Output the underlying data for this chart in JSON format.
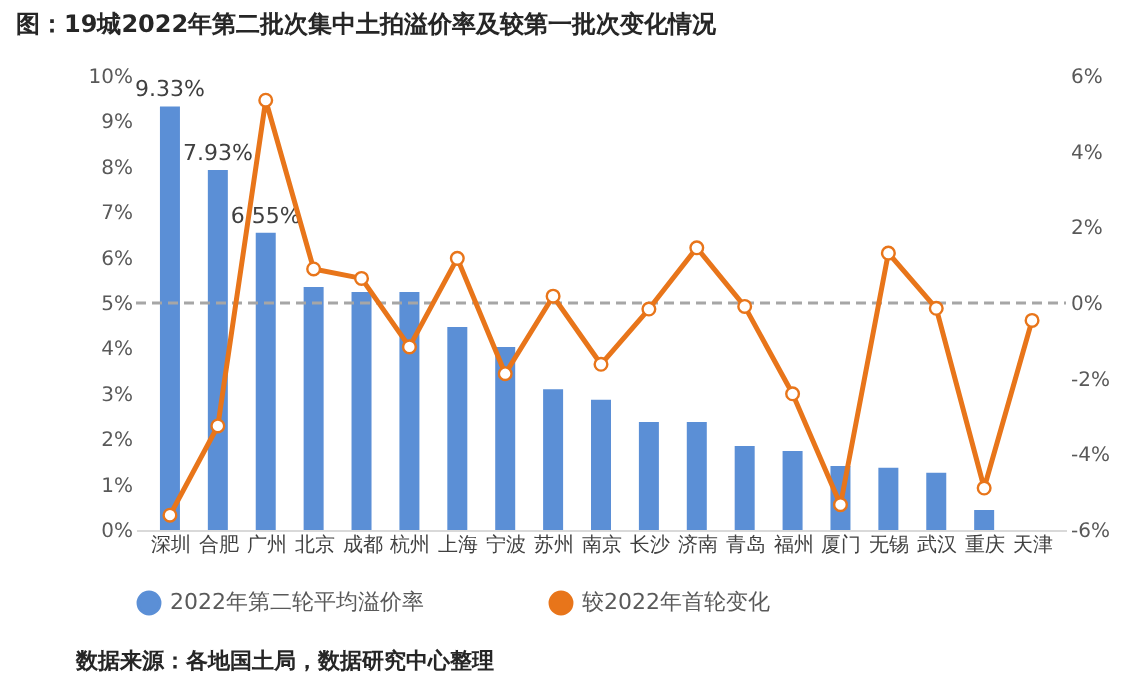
{
  "chart_data": {
    "type": "bar",
    "title": "图：19城2022年第二批次集中土拍溢价率及较第一批次变化情况",
    "categories": [
      "深圳",
      "合肥",
      "广州",
      "北京",
      "成都",
      "杭州",
      "上海",
      "宁波",
      "苏州",
      "南京",
      "长沙",
      "济南",
      "青岛",
      "福州",
      "厦门",
      "无锡",
      "武汉",
      "重庆",
      "天津"
    ],
    "series": [
      {
        "name": "2022年第二轮平均溢价率",
        "color": "#5b8fd6",
        "values": [
          9.33,
          7.93,
          6.55,
          5.35,
          5.24,
          5.24,
          4.47,
          4.03,
          3.1,
          2.87,
          2.38,
          2.38,
          1.85,
          1.74,
          1.41,
          1.37,
          1.26,
          0.44,
          null
        ],
        "value_labels": [
          "9.33%",
          "7.93%",
          "6.55%",
          null,
          null,
          null,
          null,
          null,
          null,
          null,
          null,
          null,
          null,
          null,
          null,
          null,
          null,
          null,
          null
        ]
      },
      {
        "name": "较2022年首轮变化",
        "type": "line",
        "axis": "y2",
        "color": "#e8751a",
        "marker": "circle",
        "values": [
          -5.61,
          -3.25,
          5.36,
          0.9,
          0.65,
          -1.16,
          1.18,
          -1.87,
          0.18,
          -1.62,
          -0.16,
          1.46,
          -0.09,
          -2.4,
          -5.33,
          1.32,
          -0.14,
          -4.89,
          -0.46
        ]
      }
    ],
    "ylim": [
      0,
      10
    ],
    "yticks": [
      {
        "value": 0,
        "label": "0%"
      },
      {
        "value": 1,
        "label": "1%"
      },
      {
        "value": 2,
        "label": "2%"
      },
      {
        "value": 3,
        "label": "3%"
      },
      {
        "value": 4,
        "label": "4%"
      },
      {
        "value": 5,
        "label": "5%"
      },
      {
        "value": 6,
        "label": "6%"
      },
      {
        "value": 7,
        "label": "7%"
      },
      {
        "value": 8,
        "label": "8%"
      },
      {
        "value": 9,
        "label": "9%"
      },
      {
        "value": 10,
        "label": "10%"
      }
    ],
    "y2lim": [
      -6,
      6
    ],
    "y2ticks": [
      {
        "value": -6,
        "label": "-6%"
      },
      {
        "value": -4,
        "label": "-4%"
      },
      {
        "value": -2,
        "label": "-2%"
      },
      {
        "value": 0,
        "label": "0%"
      },
      {
        "value": 2,
        "label": "2%"
      },
      {
        "value": 4,
        "label": "4%"
      },
      {
        "value": 6,
        "label": "6%"
      }
    ],
    "ref_lines": [
      {
        "axis": "y2",
        "value": 0,
        "color": "#a6a6a6",
        "line_style": "dashed"
      }
    ],
    "legend": "bottom",
    "grid": false,
    "annotations": [
      "数据来源：各地国土局，数据研究中心整理"
    ]
  }
}
